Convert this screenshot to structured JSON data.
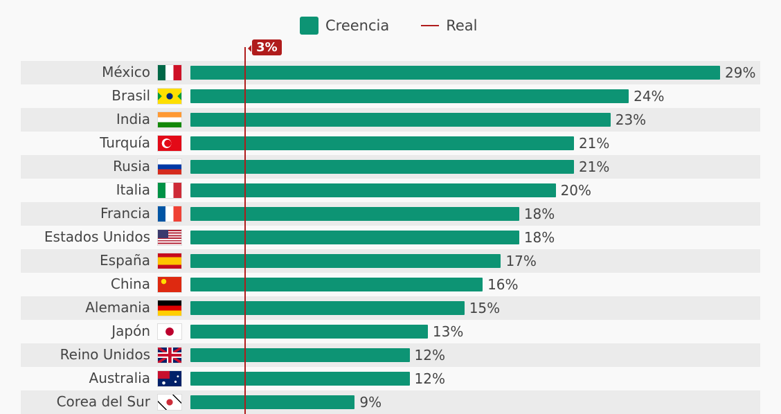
{
  "chart_data": {
    "type": "bar",
    "orientation": "horizontal",
    "categories": [
      "México",
      "Brasil",
      "India",
      "Turquía",
      "Rusia",
      "Italia",
      "Francia",
      "Estados Unidos",
      "España",
      "China",
      "Alemania",
      "Japón",
      "Reino Unidos",
      "Australia",
      "Corea del Sur"
    ],
    "series": [
      {
        "name": "Creencia",
        "values": [
          29,
          24,
          23,
          21,
          21,
          20,
          18,
          18,
          17,
          16,
          15,
          13,
          12,
          12,
          9
        ]
      }
    ],
    "value_labels": [
      "29%",
      "24%",
      "23%",
      "21%",
      "21%",
      "20%",
      "18%",
      "18%",
      "17%",
      "16%",
      "15%",
      "13%",
      "12%",
      "12%",
      "9%"
    ],
    "reference_line": {
      "name": "Real",
      "value": 3,
      "label": "3%"
    },
    "legend": {
      "position": "top",
      "items": [
        "Creencia",
        "Real"
      ]
    },
    "xlim": [
      0,
      29
    ],
    "grid": false,
    "colors": {
      "bar": "#0d9474",
      "real": "#b01c1c",
      "row_alt": "#ebebeb"
    }
  }
}
